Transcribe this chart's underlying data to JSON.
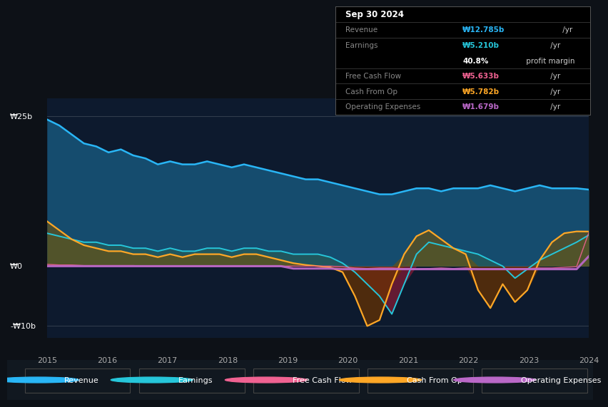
{
  "background_color": "#0d1117",
  "chart_bg_color": "#0d1a2e",
  "colors": {
    "revenue": "#29b6f6",
    "earnings": "#26c6da",
    "earnings_fill_pos": "#2a5e52",
    "earnings_fill_neg": "#7a1a35",
    "free_cash_flow": "#f06292",
    "cash_from_op": "#ffa726",
    "cash_from_op_fill_pos": "#7a5200",
    "cash_from_op_fill_neg": "#6b3300",
    "operating_expenses": "#ba68c8"
  },
  "legend": [
    {
      "label": "Revenue",
      "color": "#29b6f6"
    },
    {
      "label": "Earnings",
      "color": "#26c6da"
    },
    {
      "label": "Free Cash Flow",
      "color": "#f06292"
    },
    {
      "label": "Cash From Op",
      "color": "#ffa726"
    },
    {
      "label": "Operating Expenses",
      "color": "#ba68c8"
    }
  ],
  "tooltip_date": "Sep 30 2024",
  "tooltip_rows": [
    {
      "left": "Revenue",
      "value": "₩12.785b",
      "suffix": " /yr",
      "color": "#29b6f6",
      "divider": true
    },
    {
      "left": "Earnings",
      "value": "₩5.210b",
      "suffix": " /yr",
      "color": "#26c6da",
      "divider": false
    },
    {
      "left": "",
      "value": "40.8%",
      "suffix": " profit margin",
      "color": "white",
      "divider": true
    },
    {
      "left": "Free Cash Flow",
      "value": "₩5.633b",
      "suffix": " /yr",
      "color": "#f06292",
      "divider": true
    },
    {
      "left": "Cash From Op",
      "value": "₩5.782b",
      "suffix": " /yr",
      "color": "#ffa726",
      "divider": true
    },
    {
      "left": "Operating Expenses",
      "value": "₩1.679b",
      "suffix": " /yr",
      "color": "#ba68c8",
      "divider": false
    }
  ],
  "ylim": [
    -12,
    28
  ],
  "y_ticks": [
    25,
    0,
    -10
  ],
  "y_labels": [
    "₩25b",
    "₩0",
    "-₩10b"
  ],
  "x_labels": [
    "2015",
    "2016",
    "2017",
    "2018",
    "2019",
    "2020",
    "2021",
    "2022",
    "2023",
    "2024"
  ],
  "revenue": [
    24.5,
    23.5,
    22,
    20.5,
    20,
    19,
    19.5,
    18.5,
    18,
    17,
    17.5,
    17,
    17,
    17.5,
    17,
    16.5,
    17,
    16.5,
    16,
    15.5,
    15,
    14.5,
    14.5,
    14,
    13.5,
    13,
    12.5,
    12,
    12,
    12.5,
    13,
    13,
    12.5,
    13,
    13,
    13,
    13.5,
    13,
    12.5,
    13,
    13.5,
    13,
    13,
    13,
    12.785
  ],
  "earnings": [
    5.5,
    5,
    4.5,
    4,
    4,
    3.5,
    3.5,
    3,
    3,
    2.5,
    3,
    2.5,
    2.5,
    3,
    3,
    2.5,
    3,
    3,
    2.5,
    2.5,
    2,
    2,
    2,
    1.5,
    0.5,
    -1,
    -3,
    -5,
    -8,
    -3,
    2,
    4,
    3.5,
    3,
    2.5,
    2,
    1,
    0,
    -2,
    -0.5,
    1,
    2,
    3,
    4,
    5.21
  ],
  "cash_from_op": [
    7.5,
    6,
    4.5,
    3.5,
    3,
    2.5,
    2.5,
    2,
    2,
    1.5,
    2,
    1.5,
    2,
    2,
    2,
    1.5,
    2,
    2,
    1.5,
    1,
    0.5,
    0.2,
    0,
    -0.2,
    -1,
    -5,
    -10,
    -9,
    -3,
    2,
    5,
    6,
    4.5,
    3,
    2,
    -4,
    -7,
    -3,
    -6,
    -4,
    1,
    4,
    5.5,
    5.8,
    5.782
  ],
  "free_cash_flow": [
    0.3,
    0.2,
    0.2,
    0.1,
    0.1,
    0.1,
    0.1,
    0.1,
    0.0,
    0.0,
    0.0,
    0.0,
    0.0,
    0.0,
    0.0,
    0.0,
    0.0,
    0.0,
    0.0,
    0.0,
    0.0,
    0.0,
    0.0,
    0.0,
    -0.1,
    -0.3,
    -0.4,
    -0.3,
    -0.3,
    -0.4,
    -0.5,
    -0.4,
    -0.3,
    -0.4,
    -0.3,
    -0.5,
    -0.5,
    -0.5,
    -0.4,
    -0.4,
    -0.3,
    -0.3,
    -0.2,
    -0.1,
    5.633
  ],
  "operating_expenses": [
    0,
    0,
    0,
    0,
    0,
    0,
    0,
    0,
    0,
    0,
    0,
    0,
    0,
    0,
    0,
    0,
    0,
    0,
    0,
    0,
    -0.4,
    -0.4,
    -0.4,
    -0.4,
    -0.5,
    -0.5,
    -0.5,
    -0.5,
    -0.5,
    -0.5,
    -0.5,
    -0.5,
    -0.5,
    -0.5,
    -0.5,
    -0.5,
    -0.5,
    -0.5,
    -0.5,
    -0.5,
    -0.5,
    -0.5,
    -0.5,
    -0.5,
    1.679
  ]
}
